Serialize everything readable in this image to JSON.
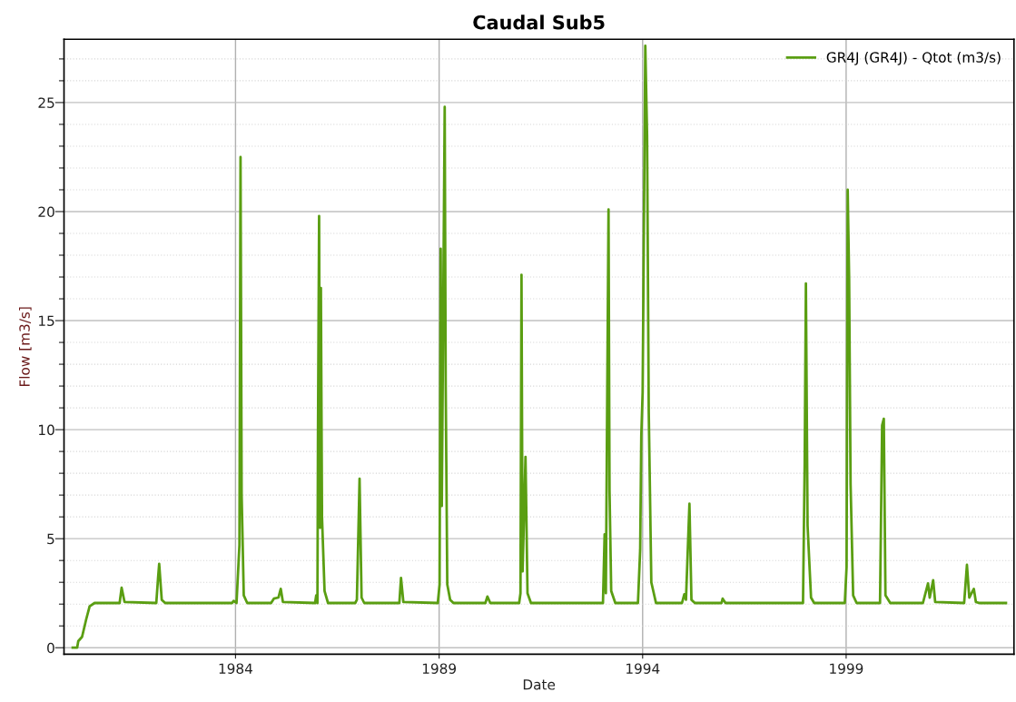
{
  "chart_data": {
    "type": "line",
    "title": "Caudal Sub5",
    "xlabel": "Date",
    "ylabel": "Flow [m3/s]",
    "xlim": [
      "1979-10-15",
      "2003-02-15"
    ],
    "xticks": [
      {
        "value": "1984-01-01",
        "label": "1984"
      },
      {
        "value": "1989-01-01",
        "label": "1989"
      },
      {
        "value": "1994-01-01",
        "label": "1994"
      },
      {
        "value": "1999-01-01",
        "label": "1999"
      }
    ],
    "ylim": [
      -0.3,
      27.9
    ],
    "yticks": [
      0,
      {
        "value": 1,
        "label": null
      },
      {
        "value": 2,
        "label": null
      },
      {
        "value": 3,
        "label": null
      },
      {
        "value": 4,
        "label": null
      },
      5,
      {
        "value": 6,
        "label": null
      },
      {
        "value": 7,
        "label": null
      },
      {
        "value": 8,
        "label": null
      },
      {
        "value": 9,
        "label": null
      },
      10,
      {
        "value": 11,
        "label": null
      },
      {
        "value": 12,
        "label": null
      },
      {
        "value": 13,
        "label": null
      },
      {
        "value": 14,
        "label": null
      },
      15,
      {
        "value": 16,
        "label": null
      },
      {
        "value": 17,
        "label": null
      },
      {
        "value": 18,
        "label": null
      },
      {
        "value": 19,
        "label": null
      },
      20,
      {
        "value": 21,
        "label": null
      },
      {
        "value": 22,
        "label": null
      },
      {
        "value": 23,
        "label": null
      },
      {
        "value": 24,
        "label": null
      },
      25,
      {
        "value": 26,
        "label": null
      },
      {
        "value": 27,
        "label": null
      }
    ],
    "grid": true,
    "legend": "top right",
    "marker": "none",
    "line_style": "solid",
    "series": [
      {
        "name": "GR4J (GR4J) - Qtot (m3/s)",
        "color": "#5a9e12",
        "x": [
          "1980-01-01",
          "1980-02-10",
          "1980-02-20",
          "1980-03-25",
          "1980-05-01",
          "1980-06-01",
          "1980-07-15",
          "1981-02-25",
          "1981-03-15",
          "1981-04-10",
          "1982-01-20",
          "1982-02-05",
          "1982-02-15",
          "1982-03-10",
          "1982-04-10",
          "1983-12-01",
          "1983-12-15",
          "1984-01-10",
          "1984-02-05",
          "1984-02-15",
          "1984-02-25",
          "1984-03-15",
          "1984-04-15",
          "1984-11-15",
          "1984-12-10",
          "1985-01-20",
          "1985-02-10",
          "1985-03-01",
          "1985-12-15",
          "1985-12-25",
          "1986-01-05",
          "1986-01-10",
          "1986-01-20",
          "1986-01-28",
          "1986-02-05",
          "1986-02-15",
          "1986-03-10",
          "1986-04-10",
          "1986-12-10",
          "1986-12-25",
          "1987-01-18",
          "1987-02-05",
          "1987-03-01",
          "1988-01-10",
          "1988-01-25",
          "1988-02-15",
          "1988-12-20",
          "1989-01-05",
          "1989-01-15",
          "1989-01-25",
          "1989-02-20",
          "1989-03-01",
          "1989-03-15",
          "1989-04-10",
          "1989-05-10",
          "1990-02-20",
          "1990-03-10",
          "1990-04-05",
          "1990-12-20",
          "1991-01-01",
          "1991-01-10",
          "1991-01-20",
          "1991-02-15",
          "1991-03-05",
          "1991-04-05",
          "1993-01-10",
          "1993-01-25",
          "1993-02-05",
          "1993-03-01",
          "1993-03-10",
          "1993-03-25",
          "1993-05-01",
          "1993-11-20",
          "1993-12-10",
          "1993-12-20",
          "1994-01-01",
          "1994-01-25",
          "1994-02-10",
          "1994-02-25",
          "1994-03-20",
          "1994-05-01",
          "1994-12-20",
          "1995-01-10",
          "1995-01-25",
          "1995-02-25",
          "1995-03-15",
          "1995-04-15",
          "1995-12-10",
          "1995-12-20",
          "1996-01-15",
          "1997-12-10",
          "1997-12-25",
          "1998-01-05",
          "1998-01-20",
          "1998-02-20",
          "1998-03-20",
          "1998-12-20",
          "1999-01-05",
          "1999-01-15",
          "1999-01-28",
          "1999-02-10",
          "1999-03-05",
          "1999-04-05",
          "1999-11-01",
          "1999-11-20",
          "1999-12-05",
          "1999-12-20",
          "2000-02-01",
          "2000-11-20",
          "2001-01-05",
          "2001-01-20",
          "2001-02-20",
          "2001-03-10",
          "2001-11-25",
          "2001-12-20",
          "2002-01-10",
          "2002-02-20",
          "2002-03-10",
          "2002-04-10",
          "2002-12-05"
        ],
        "values": [
          0,
          0,
          0.3,
          0.5,
          1.3,
          1.9,
          2.05,
          2.05,
          2.75,
          2.1,
          2.05,
          3.2,
          3.85,
          2.2,
          2.05,
          2.05,
          2.15,
          2.05,
          4.7,
          22.5,
          7.0,
          2.4,
          2.05,
          2.05,
          2.25,
          2.3,
          2.7,
          2.1,
          2.05,
          2.4,
          2.05,
          10.0,
          19.8,
          5.5,
          16.5,
          6.0,
          2.6,
          2.05,
          2.05,
          2.2,
          7.75,
          2.3,
          2.05,
          2.05,
          3.2,
          2.1,
          2.05,
          2.9,
          18.3,
          6.5,
          24.8,
          12.0,
          2.9,
          2.2,
          2.05,
          2.05,
          2.35,
          2.05,
          2.05,
          2.5,
          17.1,
          3.5,
          8.75,
          2.5,
          2.05,
          2.05,
          5.2,
          2.5,
          20.1,
          7.2,
          2.6,
          2.05,
          2.05,
          4.5,
          9.7,
          11.7,
          27.6,
          23.5,
          10.8,
          3.0,
          2.05,
          2.05,
          2.45,
          2.2,
          6.6,
          2.2,
          2.05,
          2.05,
          2.25,
          2.05,
          2.05,
          8.4,
          16.7,
          5.6,
          2.3,
          2.05,
          2.05,
          3.7,
          21.0,
          16.9,
          7.5,
          2.4,
          2.05,
          2.05,
          10.2,
          10.5,
          2.4,
          2.05,
          2.05,
          2.95,
          2.3,
          3.1,
          2.1,
          2.05,
          3.8,
          2.3,
          2.7,
          2.1,
          2.05,
          2.05
        ]
      }
    ]
  }
}
